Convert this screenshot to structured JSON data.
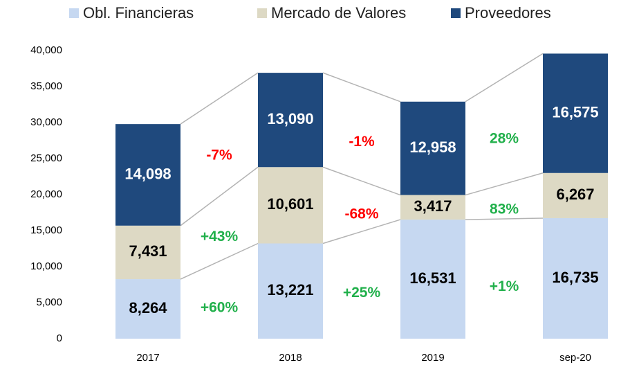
{
  "chart_data": {
    "type": "stacked-bar",
    "categories": [
      "2017",
      "2018",
      "2019",
      "sep-20"
    ],
    "series": [
      {
        "name": "Obl. Financieras",
        "color": "#c6d8f1",
        "label_color": "#000000",
        "values": [
          8264,
          13221,
          16531,
          16735
        ],
        "value_labels": [
          "8,264",
          "13,221",
          "16,531",
          "16,735"
        ],
        "changes": [
          "+60%",
          "+25%",
          "+1%"
        ]
      },
      {
        "name": "Mercado de Valores",
        "color": "#ddd9c4",
        "label_color": "#000000",
        "values": [
          7431,
          10601,
          3417,
          6267
        ],
        "value_labels": [
          "7,431",
          "10,601",
          "3,417",
          "6,267"
        ],
        "changes": [
          "+43%",
          "-68%",
          "83%"
        ]
      },
      {
        "name": "Proveedores",
        "color": "#1f497d",
        "label_color": "#ffffff",
        "values": [
          14098,
          13090,
          12958,
          16575
        ],
        "value_labels": [
          "14,098",
          "13,090",
          "12,958",
          "16,575"
        ],
        "changes": [
          "-7%",
          "-1%",
          "28%"
        ]
      }
    ],
    "ylim": [
      0,
      40000
    ],
    "yticks": [
      0,
      {
        "value": 5000,
        "label": "5,000"
      },
      {
        "value": 10000,
        "label": "10,000"
      },
      {
        "value": 15000,
        "label": "15,000"
      },
      {
        "value": 20000,
        "label": "20,000"
      },
      {
        "value": 25000,
        "label": "25,000"
      },
      {
        "value": 30000,
        "label": "30,000"
      },
      {
        "value": 35000,
        "label": "35,000"
      },
      {
        "value": 40000,
        "label": "40,000"
      }
    ],
    "grid": false,
    "legend": "top"
  }
}
